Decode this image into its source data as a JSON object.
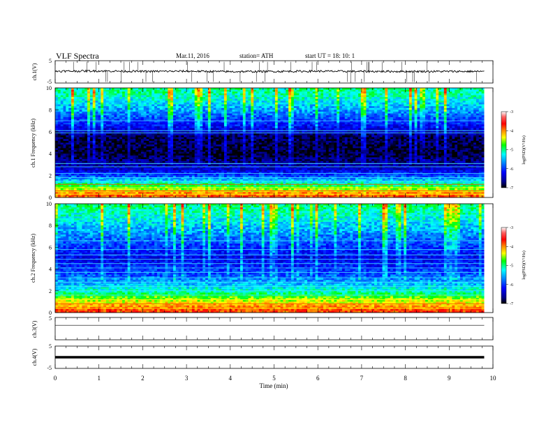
{
  "header": {
    "title": "VLF  Spectra",
    "date": "Mar.11, 2016",
    "station": "station= ATH",
    "start": "start  UT  =    18: 10: 1"
  },
  "colorbar": {
    "label": "log(PSD)(V²/Hz)",
    "ticks": [
      "-3",
      "-4",
      "-5",
      "-6",
      "-7"
    ],
    "colors": [
      "#ffffff",
      "#ff6060",
      "#ff0000",
      "#ff8c00",
      "#ffff00",
      "#00ff00",
      "#00ffff",
      "#0080ff",
      "#0000ff",
      "#00008b",
      "#000000"
    ]
  },
  "chart_data": [
    {
      "type": "line",
      "name": "ch1-waveform",
      "ylabel": "ch.1(V)",
      "ylim": [
        -5,
        5
      ],
      "yticks": [
        "5",
        "-5"
      ],
      "x": [
        0,
        1,
        2,
        3,
        4,
        5,
        6,
        7,
        8,
        9,
        9.8
      ],
      "y": [
        0.3,
        0.4,
        0.2,
        0.3,
        0.1,
        0.2,
        0.3,
        0.2,
        0.2,
        0.2,
        0.2
      ]
    },
    {
      "type": "heatmap",
      "name": "ch1-spectrogram",
      "ylabel": "ch.1\nFrequency  (kHz)",
      "ylim": [
        0,
        10
      ],
      "yticks": [
        "0",
        "2",
        "4",
        "6",
        "8",
        "10"
      ],
      "xlim": [
        0,
        10
      ],
      "data_end_min": 9.8,
      "value_label": "log(PSD)(V²/Hz)",
      "value_range": [
        -7,
        -3
      ],
      "profile": [
        {
          "f": 0.3,
          "v": -3.9
        },
        {
          "f": 0.8,
          "v": -4.6
        },
        {
          "f": 1.5,
          "v": -5.4
        },
        {
          "f": 2.5,
          "v": -6.4
        },
        {
          "f": 4.0,
          "v": -6.9
        },
        {
          "f": 5.5,
          "v": -6.8
        },
        {
          "f": 6.5,
          "v": -6.2
        },
        {
          "f": 8.0,
          "v": -5.6
        },
        {
          "f": 9.5,
          "v": -5.1
        }
      ],
      "lines_khz": [
        0.3,
        0.6,
        0.9,
        1.2,
        1.5,
        1.8,
        2.2,
        2.8,
        3.1,
        5.9,
        6.1,
        7.0
      ]
    },
    {
      "type": "heatmap",
      "name": "ch2-spectrogram",
      "ylabel": "ch.2\nFrequency  (kHz)",
      "ylim": [
        0,
        10
      ],
      "yticks": [
        "0",
        "2",
        "4",
        "6",
        "8",
        "10"
      ],
      "xlim": [
        0,
        10
      ],
      "data_end_min": 9.8,
      "value_label": "log(PSD)(V²/Hz)",
      "value_range": [
        -7,
        -3
      ],
      "profile": [
        {
          "f": 0.3,
          "v": -3.8
        },
        {
          "f": 1.0,
          "v": -4.4
        },
        {
          "f": 2.0,
          "v": -5.2
        },
        {
          "f": 3.5,
          "v": -5.9
        },
        {
          "f": 5.0,
          "v": -6.3
        },
        {
          "f": 6.0,
          "v": -6.0
        },
        {
          "f": 7.5,
          "v": -5.6
        },
        {
          "f": 9.0,
          "v": -5.2
        },
        {
          "f": 10.0,
          "v": -5.0
        }
      ],
      "lines_khz": [
        0.4,
        0.8,
        1.2,
        1.6,
        2.0,
        2.4,
        2.8,
        3.2,
        3.7,
        4.1,
        4.5,
        4.9,
        5.3,
        5.8,
        6.6
      ]
    },
    {
      "type": "line",
      "name": "ch3-waveform",
      "ylabel": "ch.3(V)",
      "ylim": [
        -5,
        5
      ],
      "yticks": [
        "5"
      ],
      "x": [
        0,
        9.8
      ],
      "y": [
        1.5,
        1.5
      ]
    },
    {
      "type": "line",
      "name": "ch4-waveform",
      "ylabel": "ch.4(V)",
      "ylim": [
        -5,
        5
      ],
      "yticks": [
        "5",
        "-5"
      ],
      "x": [
        0,
        9.8
      ],
      "y": [
        0,
        0
      ]
    }
  ],
  "xaxis": {
    "label": "Time  (min)",
    "ticks": [
      "0",
      "1",
      "2",
      "3",
      "4",
      "5",
      "6",
      "7",
      "8",
      "9",
      "10"
    ],
    "xlim": [
      0,
      10
    ]
  }
}
